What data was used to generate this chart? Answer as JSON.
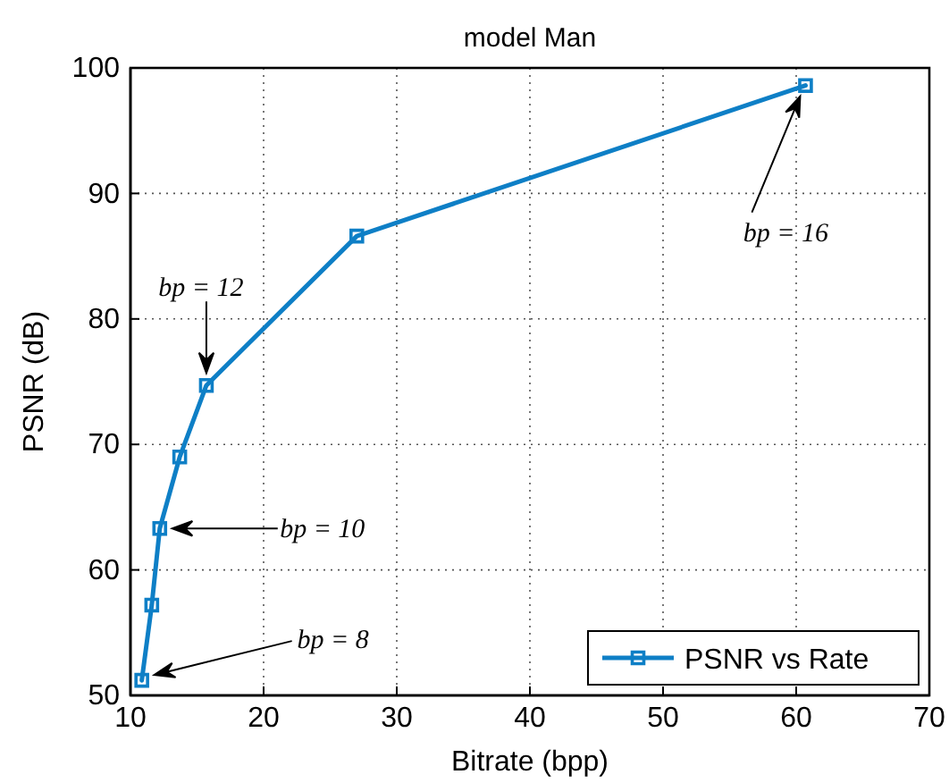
{
  "chart_data": {
    "type": "line",
    "title": "model Man",
    "xlabel": "Bitrate (bpp)",
    "ylabel": "PSNR (dB)",
    "x": [
      10.85,
      11.6,
      12.2,
      13.7,
      15.7,
      27,
      60.7
    ],
    "series": [
      {
        "name": "PSNR vs Rate",
        "color": "#0e7fc6",
        "values": [
          51.2,
          57.2,
          63.3,
          69.0,
          74.7,
          86.6,
          98.6
        ]
      }
    ],
    "xlim": [
      10,
      70
    ],
    "xticks": [
      10,
      20,
      30,
      40,
      50,
      60,
      70
    ],
    "ylim": [
      50,
      100
    ],
    "yticks": [
      50,
      60,
      70,
      80,
      90,
      100
    ],
    "grid": true,
    "legend": "bottom right",
    "marker": "square",
    "line_style": "solid",
    "annotations": [
      "bp = 8",
      "bp = 10",
      "bp = 12",
      "bp = 16"
    ]
  }
}
